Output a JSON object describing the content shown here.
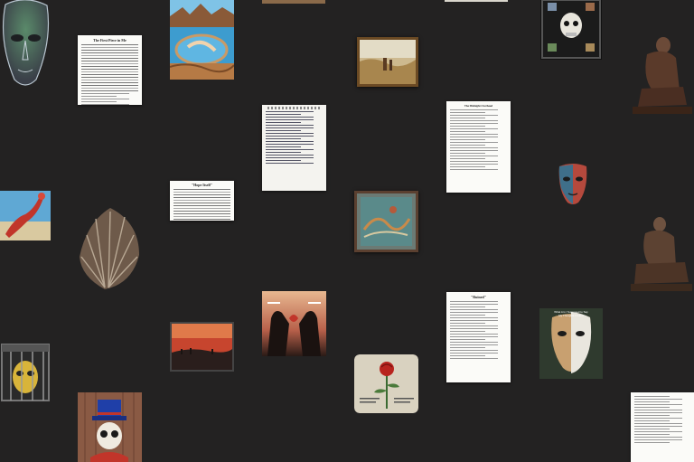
{
  "gallery": {
    "song_sheet_title": "The First Piece in Me",
    "hope_sheet_title": "\"Hope Itself\"",
    "lyric_sheet_title": "The Midnight Overhead",
    "poem_sheet_title": "\"Ruined\"",
    "mask_poster_line1": "What Am I Supposed to Say",
    "mask_poster_line2": "My Thoughts in Here"
  },
  "colors": {
    "background": "#232222",
    "frame": "#6b4a24",
    "paper": "#fbfbf8"
  }
}
